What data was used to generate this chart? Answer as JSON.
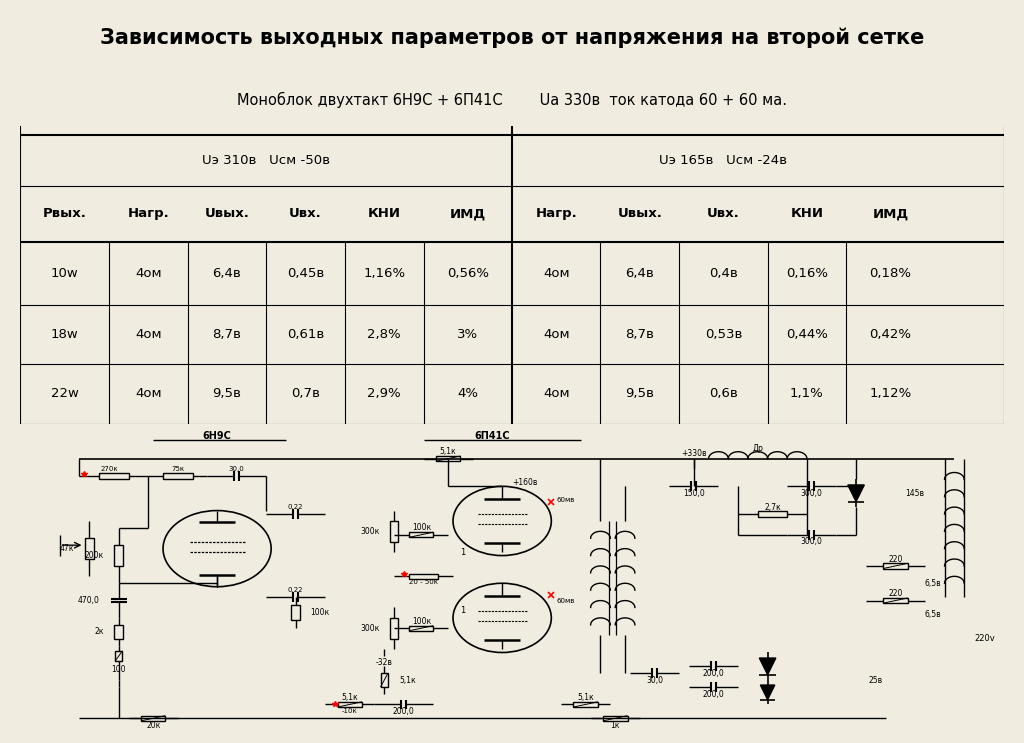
{
  "title": "Зависимость выходных параметров от напряжения на второй сетке",
  "subtitle": "Моноблок двухтакт 6Н9С + 6П41С        Ua 330в  ток катода 60 + 60 ма.",
  "col_header_left": "Uэ 310в   Uсм -50в",
  "col_header_right": "Uэ 165в   Uсм -24в",
  "table_headers": [
    "Рвых.",
    "Нагр.",
    "Uвых.",
    "Uвх.",
    "КНИ",
    "ИМД",
    "Нагр.",
    "Uвых.",
    "Uвх.",
    "КНИ",
    "ИМД"
  ],
  "table_data": [
    [
      "10w",
      "4ом",
      "6,4в",
      "0,45в",
      "1,16%",
      "0,56%",
      "4ом",
      "6,4в",
      "0,4в",
      "0,16%",
      "0,18%"
    ],
    [
      "18w",
      "4ом",
      "8,7в",
      "0,61в",
      "2,8%",
      "3%",
      "4ом",
      "8,7в",
      "0,53в",
      "0,44%",
      "0,42%"
    ],
    [
      "22w",
      "4ом",
      "9,5в",
      "0,7в",
      "2,9%",
      "4%",
      "4ом",
      "9,5в",
      "0,6в",
      "1,1%",
      "1,12%"
    ]
  ],
  "tube_label_left": "6Н9С",
  "tube_label_right": "6П41С",
  "background_color": "#f0ede0"
}
